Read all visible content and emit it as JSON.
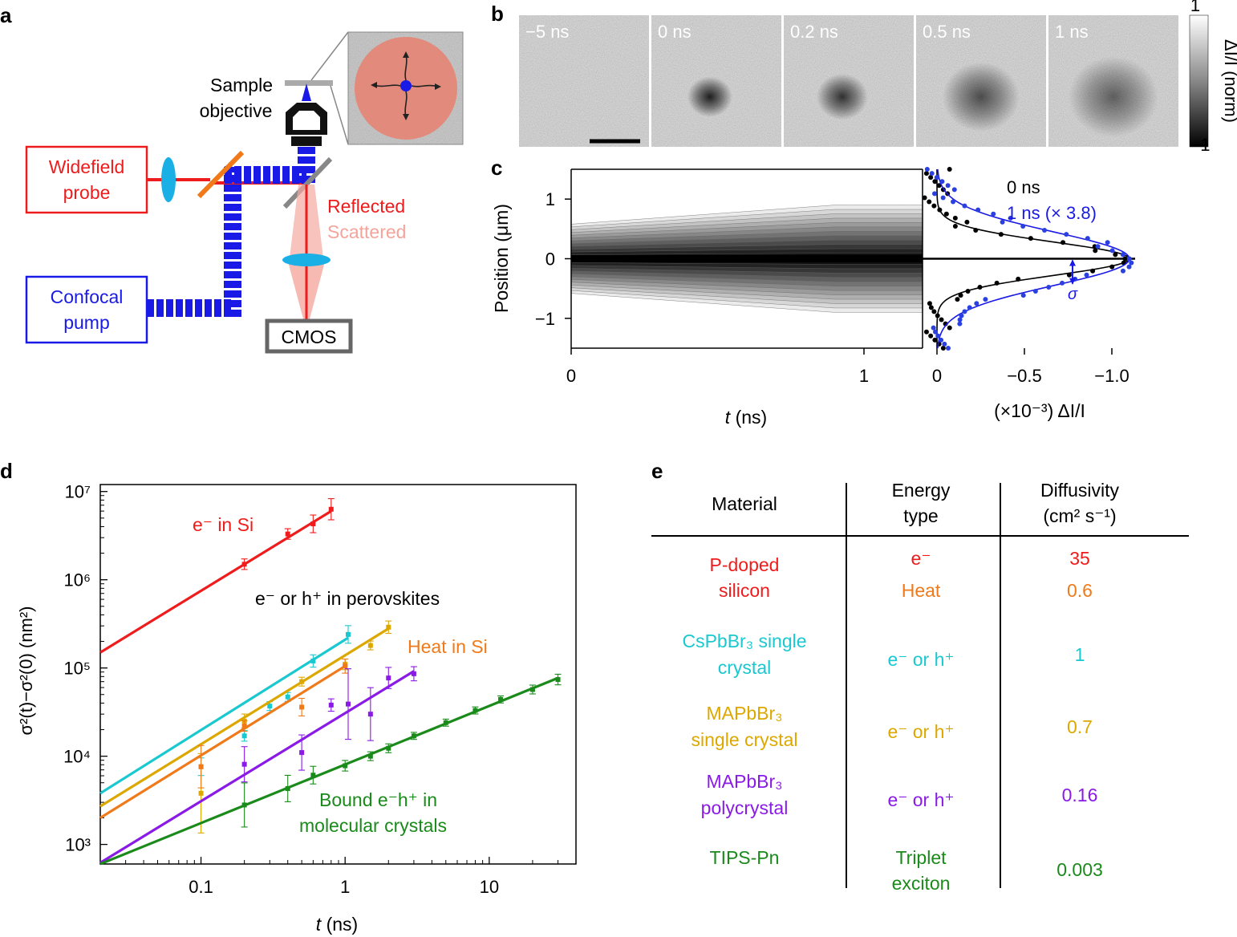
{
  "panel_labels": {
    "a": "a",
    "b": "b",
    "c": "c",
    "d": "d",
    "e": "e"
  },
  "colors": {
    "red": "#ee1c1c",
    "blue": "#1a1ae6",
    "salmon": "#f08a7c",
    "orange": "#f07a1a",
    "cyan": "#1ac8d0",
    "gold": "#dca800",
    "violet": "#8a1ae6",
    "green": "#1a8a1a",
    "dot_blue": "#2a40e0"
  },
  "setup": {
    "widefield_line1": "Widefield",
    "widefield_line2": "probe",
    "confocal_line1": "Confocal",
    "confocal_line2": "pump",
    "sample": "Sample",
    "objective": "objective",
    "reflected": "Reflected",
    "scattered": "Scattered",
    "cmos": "CMOS"
  },
  "panel_b": {
    "frames": [
      {
        "label": "−5 ns",
        "spot_size": 0,
        "spot_strength": 0
      },
      {
        "label": "0 ns",
        "spot_size": 0.35,
        "spot_strength": 0.95
      },
      {
        "label": "0.2 ns",
        "spot_size": 0.4,
        "spot_strength": 0.85
      },
      {
        "label": "0.5 ns",
        "spot_size": 0.6,
        "spot_strength": 0.7
      },
      {
        "label": "1 ns",
        "spot_size": 0.7,
        "spot_strength": 0.6
      }
    ],
    "colorbar_title": "ΔI/I (norm)",
    "colorbar_max": "1",
    "colorbar_min": "−1"
  },
  "chart_data": [
    {
      "type": "heatmap",
      "panel": "c",
      "title": "",
      "xlabel_italic": "t",
      "xlabel_rest": " (ns)",
      "ylabel": "Position (μm)",
      "x_ticks": [
        "0",
        "1"
      ],
      "y_ticks": [
        "1",
        "0",
        "−1"
      ],
      "x_range": [
        0,
        1.2
      ],
      "y_range": [
        -1.5,
        1.5
      ],
      "sigma_range_um": [
        0.35,
        0.55
      ],
      "profile": {
        "type": "line",
        "xlabel": "(×10⁻³) ΔI/I",
        "x_ticks": [
          "0",
          "−0.5",
          "−1.0"
        ],
        "x_range": [
          0.05,
          -1.15
        ],
        "series": [
          {
            "name": "0 ns",
            "amplitude": -1.1,
            "sigma_um": 0.28
          },
          {
            "name": "1 ns (× 3.8)",
            "amplitude": -1.1,
            "sigma_um": 0.45
          }
        ],
        "annotation": "σ"
      }
    },
    {
      "type": "scatter",
      "panel": "d",
      "xscale": "log",
      "yscale": "log",
      "xlim": [
        0.02,
        40
      ],
      "ylim": [
        600,
        12000000
      ],
      "xlabel_italic": "t",
      "xlabel_rest": " (ns)",
      "ylabel": "σ²(t)−σ²(0) (nm²)",
      "x_tick_labels": [
        "0.1",
        "1",
        "10"
      ],
      "y_tick_labels": [
        "10³",
        "10⁴",
        "10⁵",
        "10⁶",
        "10⁷"
      ],
      "annotations": {
        "si_electrons": "e⁻ in Si",
        "perovskites": "e⁻ or h⁺ in perovskites",
        "heat": "Heat in Si",
        "bound_line1": "Bound e⁻h⁺ in",
        "bound_line2": "molecular crystals"
      },
      "series": [
        {
          "name": "e⁻ in Si",
          "color": "#ee1c1c",
          "fit": [
            [
              0.02,
              150000
            ],
            [
              0.8,
              6000000
            ]
          ],
          "x": [
            0.2,
            0.4,
            0.6,
            0.8
          ],
          "y": [
            1500000,
            3300000,
            4300000,
            6300000
          ],
          "err": [
            0.06,
            0.06,
            0.1,
            0.12
          ]
        },
        {
          "name": "CsPbBr₃ single crystal",
          "color": "#1ac8d0",
          "fit": [
            [
              0.02,
              3800
            ],
            [
              1.05,
              220000
            ]
          ],
          "x": [
            0.1,
            0.2,
            0.3,
            0.4,
            0.6,
            1.05
          ],
          "y": [
            7600,
            17000,
            37000,
            47000,
            120000,
            240000
          ],
          "err": [
            0.1,
            0.06,
            0.05,
            0.05,
            0.07,
            0.1
          ]
        },
        {
          "name": "MAPbBr₃ single crystal",
          "color": "#dca800",
          "fit": [
            [
              0.02,
              2700
            ],
            [
              2.0,
              280000
            ]
          ],
          "x": [
            0.1,
            0.2,
            0.5,
            1.0,
            1.5,
            2.0
          ],
          "y": [
            3800,
            25000,
            70000,
            110000,
            180000,
            290000
          ],
          "err": [
            0.45,
            0.08,
            0.05,
            0.06,
            0.05,
            0.07
          ]
        },
        {
          "name": "Heat in Si",
          "color": "#f07a1a",
          "fit": [
            [
              0.02,
              2000
            ],
            [
              1.0,
              105000
            ]
          ],
          "x": [
            0.1,
            0.2,
            0.5,
            1.0
          ],
          "y": [
            7600,
            22000,
            36000,
            105000
          ],
          "err": [
            0.24,
            0.06,
            0.1,
            0.08
          ]
        },
        {
          "name": "MAPbBr₃ polycrystal",
          "color": "#8a1ae6",
          "fit": [
            [
              0.02,
              620
            ],
            [
              3.0,
              92000
            ]
          ],
          "x": [
            0.2,
            0.5,
            0.8,
            1.05,
            1.5,
            2.0,
            3.0
          ],
          "y": [
            8100,
            11000,
            38000,
            39000,
            30000,
            77000,
            86000
          ],
          "err": [
            0.2,
            0.2,
            0.07,
            0.4,
            0.3,
            0.12,
            0.08
          ]
        },
        {
          "name": "TIPS-Pn",
          "color": "#1a8a1a",
          "fit": [
            [
              0.02,
              600
            ],
            [
              30,
              77000
            ]
          ],
          "x": [
            0.2,
            0.4,
            0.6,
            1.0,
            1.5,
            2.0,
            3.0,
            5.0,
            8.0,
            12.0,
            20.0,
            30.0
          ],
          "y": [
            2800,
            4300,
            6100,
            7800,
            10000,
            12300,
            17000,
            24000,
            33000,
            44000,
            57000,
            74000
          ],
          "err": [
            0.25,
            0.15,
            0.1,
            0.06,
            0.05,
            0.05,
            0.04,
            0.04,
            0.04,
            0.04,
            0.05,
            0.06
          ]
        }
      ]
    },
    {
      "type": "table",
      "panel": "e",
      "headers": {
        "material": "Material",
        "energy_1": "Energy",
        "energy_2": "type",
        "diff_1": "Diffusivity",
        "diff_2": "(cm² s⁻¹)"
      },
      "rows": [
        {
          "mat1": "P-doped",
          "mat2": "silicon",
          "mat_color": "#ee1c1c",
          "type1": "e⁻",
          "type2": "Heat",
          "diff1": "35",
          "diff2": "0.6"
        },
        {
          "mat1": "CsPbBr₃ single",
          "mat2": "crystal",
          "mat_color": "#1ac8d0",
          "type": "e⁻ or h⁺",
          "diff": "1"
        },
        {
          "mat1": "MAPbBr₃",
          "mat2": "single crystal",
          "mat_color": "#dca800",
          "type": "e⁻ or h⁺",
          "diff": "0.7"
        },
        {
          "mat1": "MAPbBr₃",
          "mat2": "polycrystal",
          "mat_color": "#8a1ae6",
          "type": "e⁻ or h⁺",
          "diff": "0.16"
        },
        {
          "mat1": "TIPS-Pn",
          "mat_color": "#1a8a1a",
          "type1": "Triplet",
          "type2": "exciton",
          "diff": "0.003"
        }
      ]
    }
  ]
}
